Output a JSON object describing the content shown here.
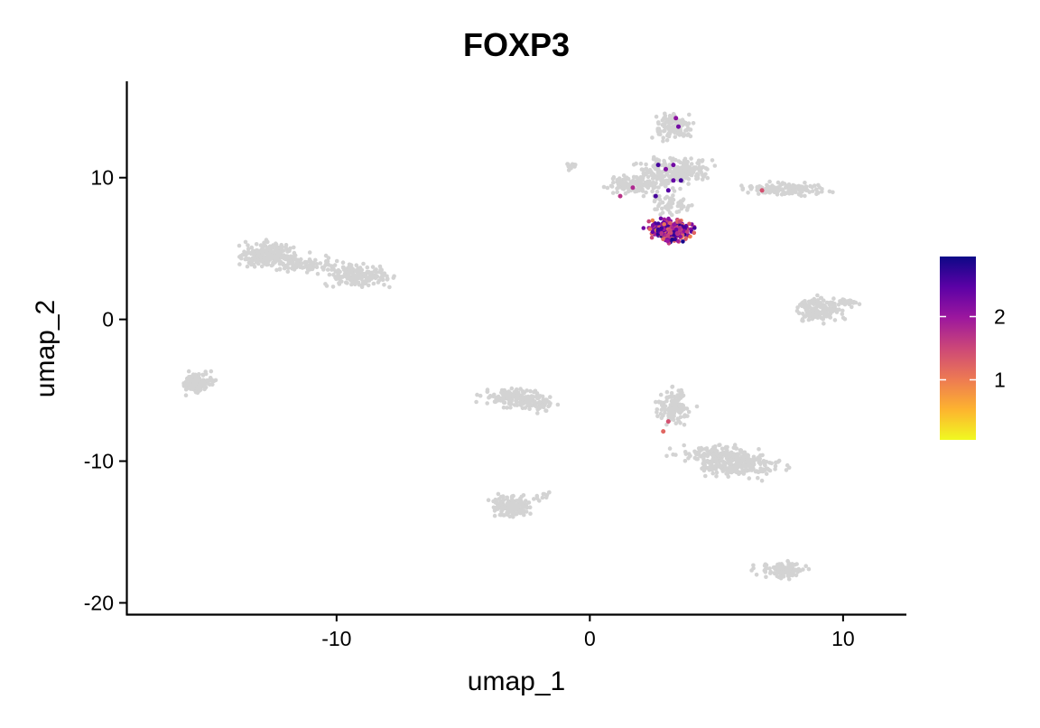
{
  "chart_data": {
    "type": "scatter",
    "title": "FOXP3",
    "xlabel": "umap_1",
    "ylabel": "umap_2",
    "xlim": [
      -18.3,
      12.5
    ],
    "ylim": [
      -20.8,
      16.8
    ],
    "x_ticks": [
      -10,
      0,
      10
    ],
    "x_tick_labels": [
      "-10",
      "0",
      "10"
    ],
    "y_ticks": [
      -20,
      -10,
      0,
      10
    ],
    "y_tick_labels": [
      "-20",
      "-10",
      "0",
      "10"
    ],
    "grid": false,
    "background_color": "#d3d3d3",
    "colorscale": {
      "name": "plasma",
      "colors": [
        "#f0f921",
        "#fdb32f",
        "#ed7953",
        "#cc4778",
        "#9c179e",
        "#5c01a6",
        "#0d0887"
      ],
      "min": 0.05,
      "max": 2.95,
      "ticks": [
        1,
        2
      ],
      "tick_labels": [
        "1",
        "2"
      ],
      "position": "right"
    },
    "clusters": [
      {
        "cx": -12.6,
        "cy": 4.5,
        "sx": 0.8,
        "sy": 0.55,
        "n": 260
      },
      {
        "cx": -11.0,
        "cy": 3.8,
        "sx": 1.0,
        "sy": 0.35,
        "n": 80
      },
      {
        "cx": -9.1,
        "cy": 3.1,
        "sx": 0.8,
        "sy": 0.5,
        "n": 180
      },
      {
        "cx": -15.5,
        "cy": -4.5,
        "sx": 0.45,
        "sy": 0.5,
        "n": 130
      },
      {
        "cx": -3.1,
        "cy": -5.5,
        "sx": 0.8,
        "sy": 0.4,
        "n": 150
      },
      {
        "cx": -2.0,
        "cy": -6.0,
        "sx": 0.5,
        "sy": 0.3,
        "n": 50
      },
      {
        "cx": -3.1,
        "cy": -13.2,
        "sx": 0.55,
        "sy": 0.5,
        "n": 150
      },
      {
        "cx": -1.8,
        "cy": -12.5,
        "sx": 0.25,
        "sy": 0.2,
        "n": 10
      },
      {
        "cx": -0.8,
        "cy": 10.8,
        "sx": 0.2,
        "sy": 0.15,
        "n": 15
      },
      {
        "cx": 3.3,
        "cy": 13.6,
        "sx": 0.55,
        "sy": 0.6,
        "n": 110
      },
      {
        "cx": 3.4,
        "cy": 10.5,
        "sx": 0.9,
        "sy": 0.6,
        "n": 220
      },
      {
        "cx": 1.8,
        "cy": 9.5,
        "sx": 0.8,
        "sy": 0.45,
        "n": 130
      },
      {
        "cx": 3.2,
        "cy": 8.2,
        "sx": 0.5,
        "sy": 0.55,
        "n": 60
      },
      {
        "cx": 7.8,
        "cy": 9.2,
        "sx": 1.0,
        "sy": 0.3,
        "n": 150
      },
      {
        "cx": 9.1,
        "cy": 0.7,
        "sx": 0.6,
        "sy": 0.55,
        "n": 170
      },
      {
        "cx": 10.2,
        "cy": 1.2,
        "sx": 0.35,
        "sy": 0.2,
        "n": 25
      },
      {
        "cx": 3.3,
        "cy": -6.1,
        "sx": 0.45,
        "sy": 0.8,
        "n": 120
      },
      {
        "cx": 4.8,
        "cy": -9.4,
        "sx": 0.9,
        "sy": 0.45,
        "n": 110
      },
      {
        "cx": 5.9,
        "cy": -10.2,
        "sx": 1.0,
        "sy": 0.6,
        "n": 260
      },
      {
        "cx": 7.6,
        "cy": -17.7,
        "sx": 0.6,
        "sy": 0.35,
        "n": 120
      }
    ],
    "expressing_cluster": {
      "cx": 3.2,
      "cy": 6.3,
      "sx": 0.55,
      "sy": 0.45,
      "n": 320
    },
    "expressing_points": [
      {
        "x": 3.4,
        "y": 14.2,
        "value": 2.1
      },
      {
        "x": 3.5,
        "y": 13.6,
        "value": 2.3
      },
      {
        "x": 2.7,
        "y": 10.9,
        "value": 2.6
      },
      {
        "x": 3.0,
        "y": 10.6,
        "value": 2.2
      },
      {
        "x": 3.3,
        "y": 10.9,
        "value": 2.3
      },
      {
        "x": 3.3,
        "y": 9.8,
        "value": 2.4
      },
      {
        "x": 3.6,
        "y": 9.8,
        "value": 2.6
      },
      {
        "x": 3.1,
        "y": 9.1,
        "value": 2.5
      },
      {
        "x": 1.7,
        "y": 9.3,
        "value": 1.8
      },
      {
        "x": 1.2,
        "y": 8.7,
        "value": 1.7
      },
      {
        "x": 2.6,
        "y": 8.7,
        "value": 2.6
      },
      {
        "x": 6.8,
        "y": 9.1,
        "value": 1.4
      },
      {
        "x": 3.1,
        "y": -7.2,
        "value": 1.4
      },
      {
        "x": 2.9,
        "y": -7.9,
        "value": 1.2
      }
    ]
  }
}
